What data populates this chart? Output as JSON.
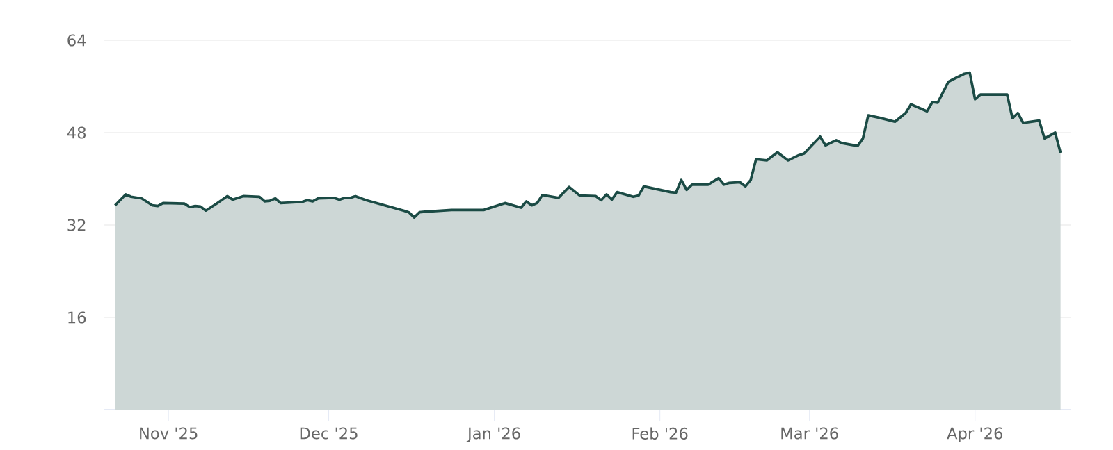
{
  "chart_data": {
    "type": "area",
    "color": "#1b4b45",
    "x": [
      "2025-10-22",
      "2025-10-24",
      "2025-10-25",
      "2025-10-27",
      "2025-10-29",
      "2025-10-30",
      "2025-10-31",
      "2025-11-04",
      "2025-11-05",
      "2025-11-06",
      "2025-11-07",
      "2025-11-08",
      "2025-11-10",
      "2025-11-12",
      "2025-11-13",
      "2025-11-15",
      "2025-11-18",
      "2025-11-19",
      "2025-11-20",
      "2025-11-21",
      "2025-11-22",
      "2025-11-26",
      "2025-11-27",
      "2025-11-28",
      "2025-11-29",
      "2025-12-02",
      "2025-12-03",
      "2025-12-04",
      "2025-12-05",
      "2025-12-06",
      "2025-12-08",
      "2025-12-15",
      "2025-12-16",
      "2025-12-17",
      "2025-12-18",
      "2025-12-19",
      "2025-12-24",
      "2025-12-30",
      "2026-01-03",
      "2026-01-06",
      "2026-01-07",
      "2026-01-08",
      "2026-01-09",
      "2026-01-10",
      "2026-01-13",
      "2026-01-15",
      "2026-01-17",
      "2026-01-20",
      "2026-01-21",
      "2026-01-22",
      "2026-01-23",
      "2026-01-24",
      "2026-01-27",
      "2026-01-28",
      "2026-01-29",
      "2026-02-03",
      "2026-02-04",
      "2026-02-05",
      "2026-02-06",
      "2026-02-07",
      "2026-02-10",
      "2026-02-12",
      "2026-02-13",
      "2026-02-14",
      "2026-02-16",
      "2026-02-17",
      "2026-02-18",
      "2026-02-19",
      "2026-02-21",
      "2026-02-23",
      "2026-02-25",
      "2026-02-27",
      "2026-02-28",
      "2026-03-03",
      "2026-03-04",
      "2026-03-06",
      "2026-03-07",
      "2026-03-10",
      "2026-03-11",
      "2026-03-12",
      "2026-03-14",
      "2026-03-17",
      "2026-03-19",
      "2026-03-20",
      "2026-03-23",
      "2026-03-24",
      "2026-03-25",
      "2026-03-27",
      "2026-03-28",
      "2026-03-30",
      "2026-03-31",
      "2026-04-01",
      "2026-04-02",
      "2026-04-07",
      "2026-04-08",
      "2026-04-09",
      "2026-04-10",
      "2026-04-13",
      "2026-04-14",
      "2026-04-16",
      "2026-04-17"
    ],
    "values": [
      35.4,
      37.3,
      36.9,
      36.6,
      35.4,
      35.3,
      35.8,
      35.7,
      35.1,
      35.3,
      35.2,
      34.5,
      35.7,
      37.0,
      36.4,
      37.0,
      36.9,
      36.1,
      36.2,
      36.6,
      35.8,
      36.0,
      36.3,
      36.1,
      36.6,
      36.7,
      36.4,
      36.7,
      36.7,
      37.0,
      36.3,
      34.5,
      34.2,
      33.3,
      34.2,
      34.3,
      34.6,
      34.6,
      35.8,
      35.0,
      36.1,
      35.4,
      35.8,
      37.2,
      36.7,
      38.6,
      37.1,
      37.0,
      36.3,
      37.3,
      36.4,
      37.7,
      36.9,
      37.1,
      38.7,
      37.7,
      37.6,
      39.8,
      38.1,
      39.0,
      39.0,
      40.1,
      39.0,
      39.3,
      39.4,
      38.7,
      39.8,
      43.4,
      43.2,
      44.6,
      43.2,
      44.1,
      44.4,
      47.3,
      45.8,
      46.7,
      46.2,
      45.7,
      47.0,
      51.0,
      50.6,
      49.9,
      51.4,
      52.9,
      51.7,
      53.3,
      53.2,
      56.8,
      57.3,
      58.2,
      58.4,
      53.8,
      54.6,
      54.6,
      50.5,
      51.4,
      49.7,
      50.1,
      47.0,
      48.0,
      44.5
    ],
    "xlim": [
      "2025-10-20",
      "2026-04-19"
    ],
    "xticks": [
      {
        "value": "2025-11-01",
        "label": "Nov '25"
      },
      {
        "value": "2025-12-01",
        "label": "Dec '25"
      },
      {
        "value": "2026-01-01",
        "label": "Jan '26"
      },
      {
        "value": "2026-02-01",
        "label": "Feb '26"
      },
      {
        "value": "2026-03-01",
        "label": "Mar '26"
      },
      {
        "value": "2026-04-01",
        "label": "Apr '26"
      }
    ],
    "ylim": [
      0,
      64
    ],
    "yticks": [
      16,
      32,
      48,
      64
    ],
    "grid": "y",
    "marker": "none",
    "line_style": "solid"
  }
}
